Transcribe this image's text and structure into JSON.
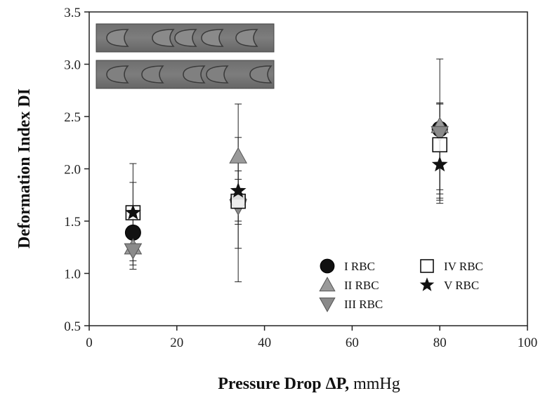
{
  "chart_data": {
    "type": "scatter",
    "xlabel_bold": "Pressure Drop ΔP,",
    "xlabel_unit": " mmHg",
    "ylabel": "Deformation Index DI",
    "xlim": [
      0,
      100
    ],
    "ylim": [
      0.5,
      3.5
    ],
    "x_ticks": [
      "0",
      "20",
      "40",
      "60",
      "80",
      "100"
    ],
    "y_ticks": [
      "0.5",
      "1.0",
      "1.5",
      "2.0",
      "2.5",
      "3.0",
      "3.5"
    ],
    "grid": false,
    "legend_position": "bottom-right",
    "inset_images": "two rows of microscopy frames showing deformed red blood cells in a channel",
    "series": [
      {
        "name": "I RBC",
        "marker": "circle",
        "color": "#111111",
        "points": [
          {
            "x": 10,
            "y": 1.39,
            "err_low": 1.22,
            "err_high": 1.58
          },
          {
            "x": 34,
            "y": 1.7,
            "err_low": 1.5,
            "err_high": 1.9
          },
          {
            "x": 80,
            "y": 2.38,
            "err_low": 1.8,
            "err_high": 2.62
          }
        ]
      },
      {
        "name": "II RBC",
        "marker": "triangle-up",
        "color": "#9a9a9a",
        "points": [
          {
            "x": 10,
            "y": 1.25,
            "err_low": 1.08,
            "err_high": 1.45
          },
          {
            "x": 34,
            "y": 2.12,
            "err_low": 1.62,
            "err_high": 2.62
          },
          {
            "x": 80,
            "y": 2.41,
            "err_low": 1.76,
            "err_high": 3.05
          }
        ]
      },
      {
        "name": "III RBC",
        "marker": "triangle-down",
        "color": "#8a8a8a",
        "points": [
          {
            "x": 10,
            "y": 1.22,
            "err_low": 1.04,
            "err_high": 1.4
          },
          {
            "x": 34,
            "y": 1.64,
            "err_low": 1.24,
            "err_high": 1.98
          },
          {
            "x": 80,
            "y": 2.34,
            "err_low": 1.7,
            "err_high": 2.62
          }
        ]
      },
      {
        "name": "IV RBC",
        "marker": "square-open",
        "color": "#111111",
        "points": [
          {
            "x": 10,
            "y": 1.58,
            "err_low": 1.26,
            "err_high": 1.87
          },
          {
            "x": 34,
            "y": 1.69,
            "err_low": 0.92,
            "err_high": 2.3
          },
          {
            "x": 80,
            "y": 2.23,
            "err_low": 1.67,
            "err_high": 2.63
          }
        ]
      },
      {
        "name": "V RBC",
        "marker": "star",
        "color": "#111111",
        "points": [
          {
            "x": 10,
            "y": 1.58,
            "err_low": 1.12,
            "err_high": 2.05
          },
          {
            "x": 34,
            "y": 1.79,
            "err_low": 1.47,
            "err_high": 2.12
          },
          {
            "x": 80,
            "y": 2.04,
            "err_low": 1.72,
            "err_high": 2.4
          }
        ]
      }
    ]
  }
}
